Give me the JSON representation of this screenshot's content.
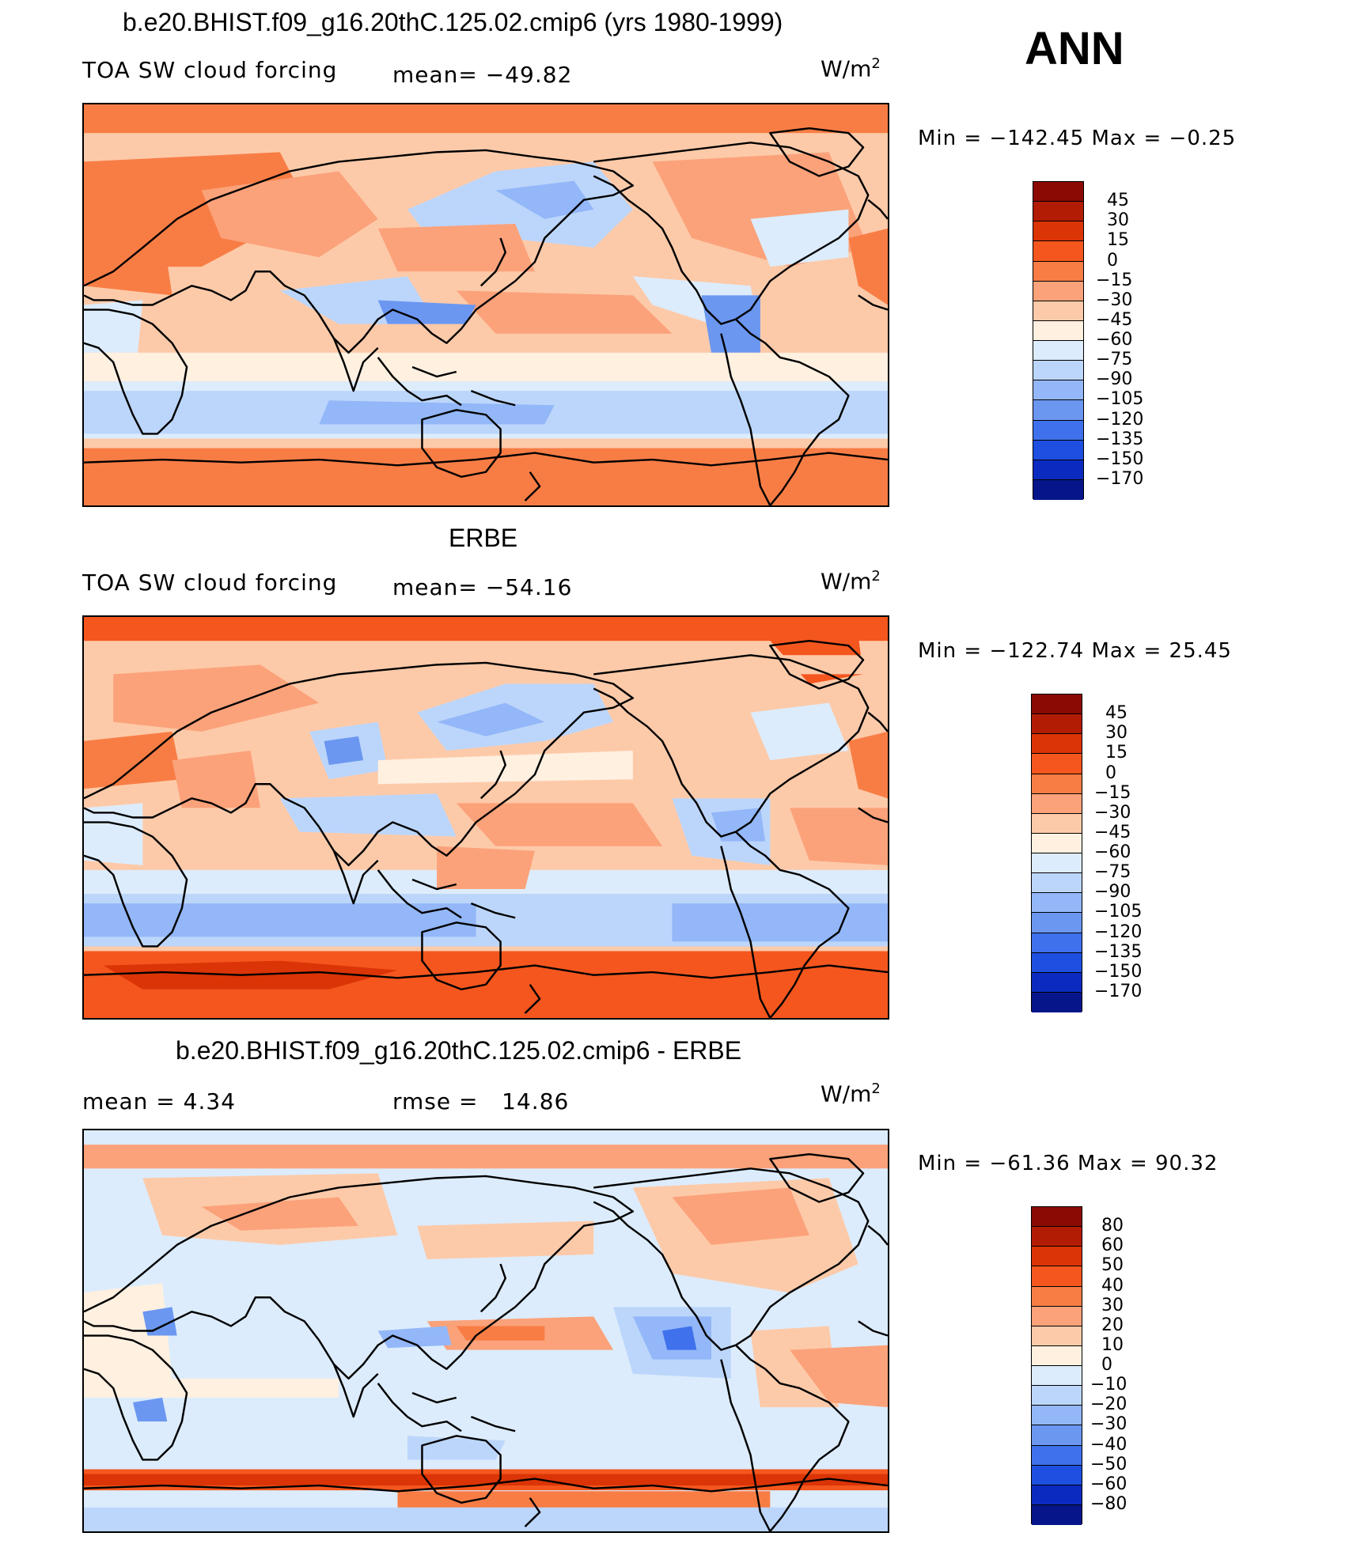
{
  "figure": {
    "season": "ANN",
    "units_text": "W/m",
    "units_exp": "2"
  },
  "panels": [
    {
      "title": "b.e20.BHIST.f09_g16.20thC.125.02.cmip6 (yrs 1980-1999)",
      "left_label": "TOA SW cloud forcing",
      "center_label": "mean= −49.82",
      "min_max": "Min = −142.45 Max =  −0.25",
      "colorbar": {
        "labels": [
          "45",
          "30",
          "15",
          "0",
          "−15",
          "−30",
          "−45",
          "−60",
          "−75",
          "−90",
          "−105",
          "−120",
          "−135",
          "−150",
          "−170"
        ],
        "colors": [
          "#8b0a04",
          "#b31c04",
          "#db3406",
          "#f4561e",
          "#f87d45",
          "#fba27a",
          "#fdcaa9",
          "#fff0e0",
          "#dcecfc",
          "#bcd6fb",
          "#93b7f8",
          "#6b97f1",
          "#3f71ec",
          "#1e4fe0",
          "#0b2bc0",
          "#06168a"
        ]
      }
    },
    {
      "title": "ERBE",
      "left_label": "TOA SW cloud forcing",
      "center_label": "mean= −54.16",
      "min_max": "Min = −122.74 Max =  25.45",
      "colorbar": {
        "labels": [
          "45",
          "30",
          "15",
          "0",
          "−15",
          "−30",
          "−45",
          "−60",
          "−75",
          "−90",
          "−105",
          "−120",
          "−135",
          "−150",
          "−170"
        ],
        "colors": [
          "#8b0a04",
          "#b31c04",
          "#db3406",
          "#f4561e",
          "#f87d45",
          "#fba27a",
          "#fdcaa9",
          "#fff0e0",
          "#dcecfc",
          "#bcd6fb",
          "#93b7f8",
          "#6b97f1",
          "#3f71ec",
          "#1e4fe0",
          "#0b2bc0",
          "#06168a"
        ]
      }
    },
    {
      "title": "b.e20.BHIST.f09_g16.20thC.125.02.cmip6 - ERBE",
      "left_label": "mean =    4.34",
      "center_label": "rmse =   14.86",
      "min_max": "Min = −61.36 Max =  90.32",
      "colorbar": {
        "labels": [
          "80",
          "60",
          "50",
          "40",
          "30",
          "20",
          "10",
          "0",
          "−10",
          "−20",
          "−30",
          "−40",
          "−50",
          "−60",
          "−80"
        ],
        "colors": [
          "#8b0a04",
          "#b31c04",
          "#db3406",
          "#f4561e",
          "#f87d45",
          "#fba27a",
          "#fdcaa9",
          "#fff0e0",
          "#dcecfc",
          "#bcd6fb",
          "#93b7f8",
          "#6b97f1",
          "#3f71ec",
          "#1e4fe0",
          "#0b2bc0",
          "#06168a"
        ]
      }
    }
  ]
}
